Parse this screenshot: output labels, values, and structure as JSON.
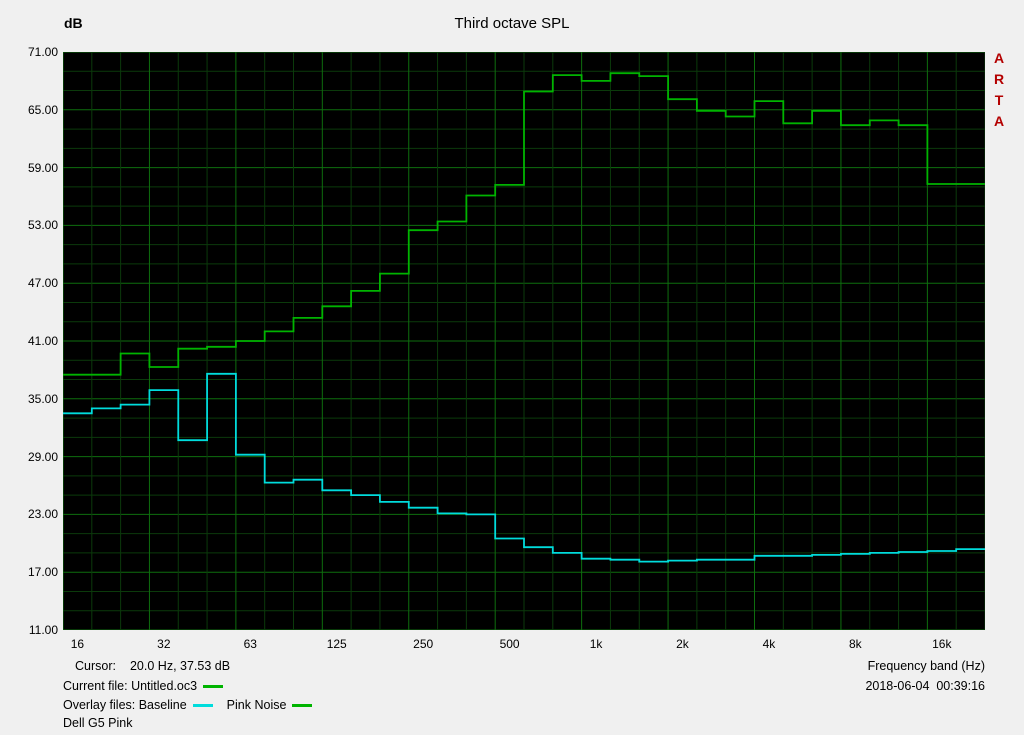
{
  "branding": {
    "name": "ARTA",
    "letters": [
      "A",
      "R",
      "T",
      "A"
    ],
    "color": "#b40000"
  },
  "chart_data": {
    "type": "line",
    "line_style": "step-third-octave-bands",
    "title": "Third octave SPL",
    "ylabel": "dB",
    "xlabel": "Frequency band (Hz)",
    "ylim": [
      11,
      71
    ],
    "y_major_step": 6,
    "y_minor_step": 2,
    "y_tick_labels": [
      "71.00",
      "65.00",
      "59.00",
      "53.00",
      "47.00",
      "41.00",
      "35.00",
      "29.00",
      "23.00",
      "17.00",
      "11.00"
    ],
    "x_scale": "log-third-octave",
    "bands_hz": [
      16,
      20,
      25,
      31.5,
      40,
      50,
      63,
      80,
      100,
      125,
      160,
      200,
      250,
      315,
      400,
      500,
      630,
      800,
      1000,
      1250,
      1600,
      2000,
      2500,
      3150,
      4000,
      5000,
      6300,
      8000,
      10000,
      12500,
      16000,
      20000
    ],
    "x_tick_labels": [
      "16",
      "32",
      "63",
      "125",
      "250",
      "500",
      "1k",
      "2k",
      "4k",
      "8k",
      "16k"
    ],
    "x_tick_band_indices": [
      0,
      3,
      6,
      9,
      12,
      15,
      18,
      21,
      24,
      27,
      30
    ],
    "x_grid_major_every": 3,
    "grid": true,
    "plot_bg": "#000000",
    "grid_major_color": "#0e6e0e",
    "grid_minor_color": "#0b3a0b",
    "series": [
      {
        "name": "Baseline",
        "color": "#00dcdc",
        "values": [
          33.5,
          34.0,
          34.4,
          35.9,
          30.7,
          37.6,
          29.2,
          26.3,
          26.6,
          25.5,
          25.0,
          24.3,
          23.7,
          23.1,
          23.0,
          20.5,
          19.6,
          19.0,
          18.4,
          18.3,
          18.1,
          18.2,
          18.3,
          18.3,
          18.7,
          18.7,
          18.8,
          18.9,
          19.0,
          19.1,
          19.2,
          19.4
        ]
      },
      {
        "name": "Pink Noise",
        "color": "#00b400",
        "values": [
          37.5,
          37.5,
          39.7,
          38.3,
          40.2,
          40.4,
          41.0,
          42.0,
          43.4,
          44.6,
          46.2,
          48.0,
          52.5,
          53.4,
          56.1,
          57.2,
          66.9,
          68.6,
          68.0,
          68.8,
          68.5,
          66.1,
          64.9,
          64.3,
          65.9,
          63.6,
          64.9,
          63.4,
          63.9,
          63.4,
          57.3,
          57.3
        ]
      }
    ]
  },
  "status": {
    "cursor_label": "Cursor:",
    "cursor_value": "20.0 Hz, 37.53 dB",
    "current_file_label": "Current file: Untitled.oc3",
    "datetime": "2018-06-04  00:39:16",
    "overlay_label": "Overlay files: Baseline",
    "overlay_second_label": "Pink Noise",
    "memo": "Dell G5 Pink",
    "current_file_swatch_color": "#00b400",
    "overlay1_swatch_color": "#00dcdc",
    "overlay2_swatch_color": "#00b400"
  }
}
